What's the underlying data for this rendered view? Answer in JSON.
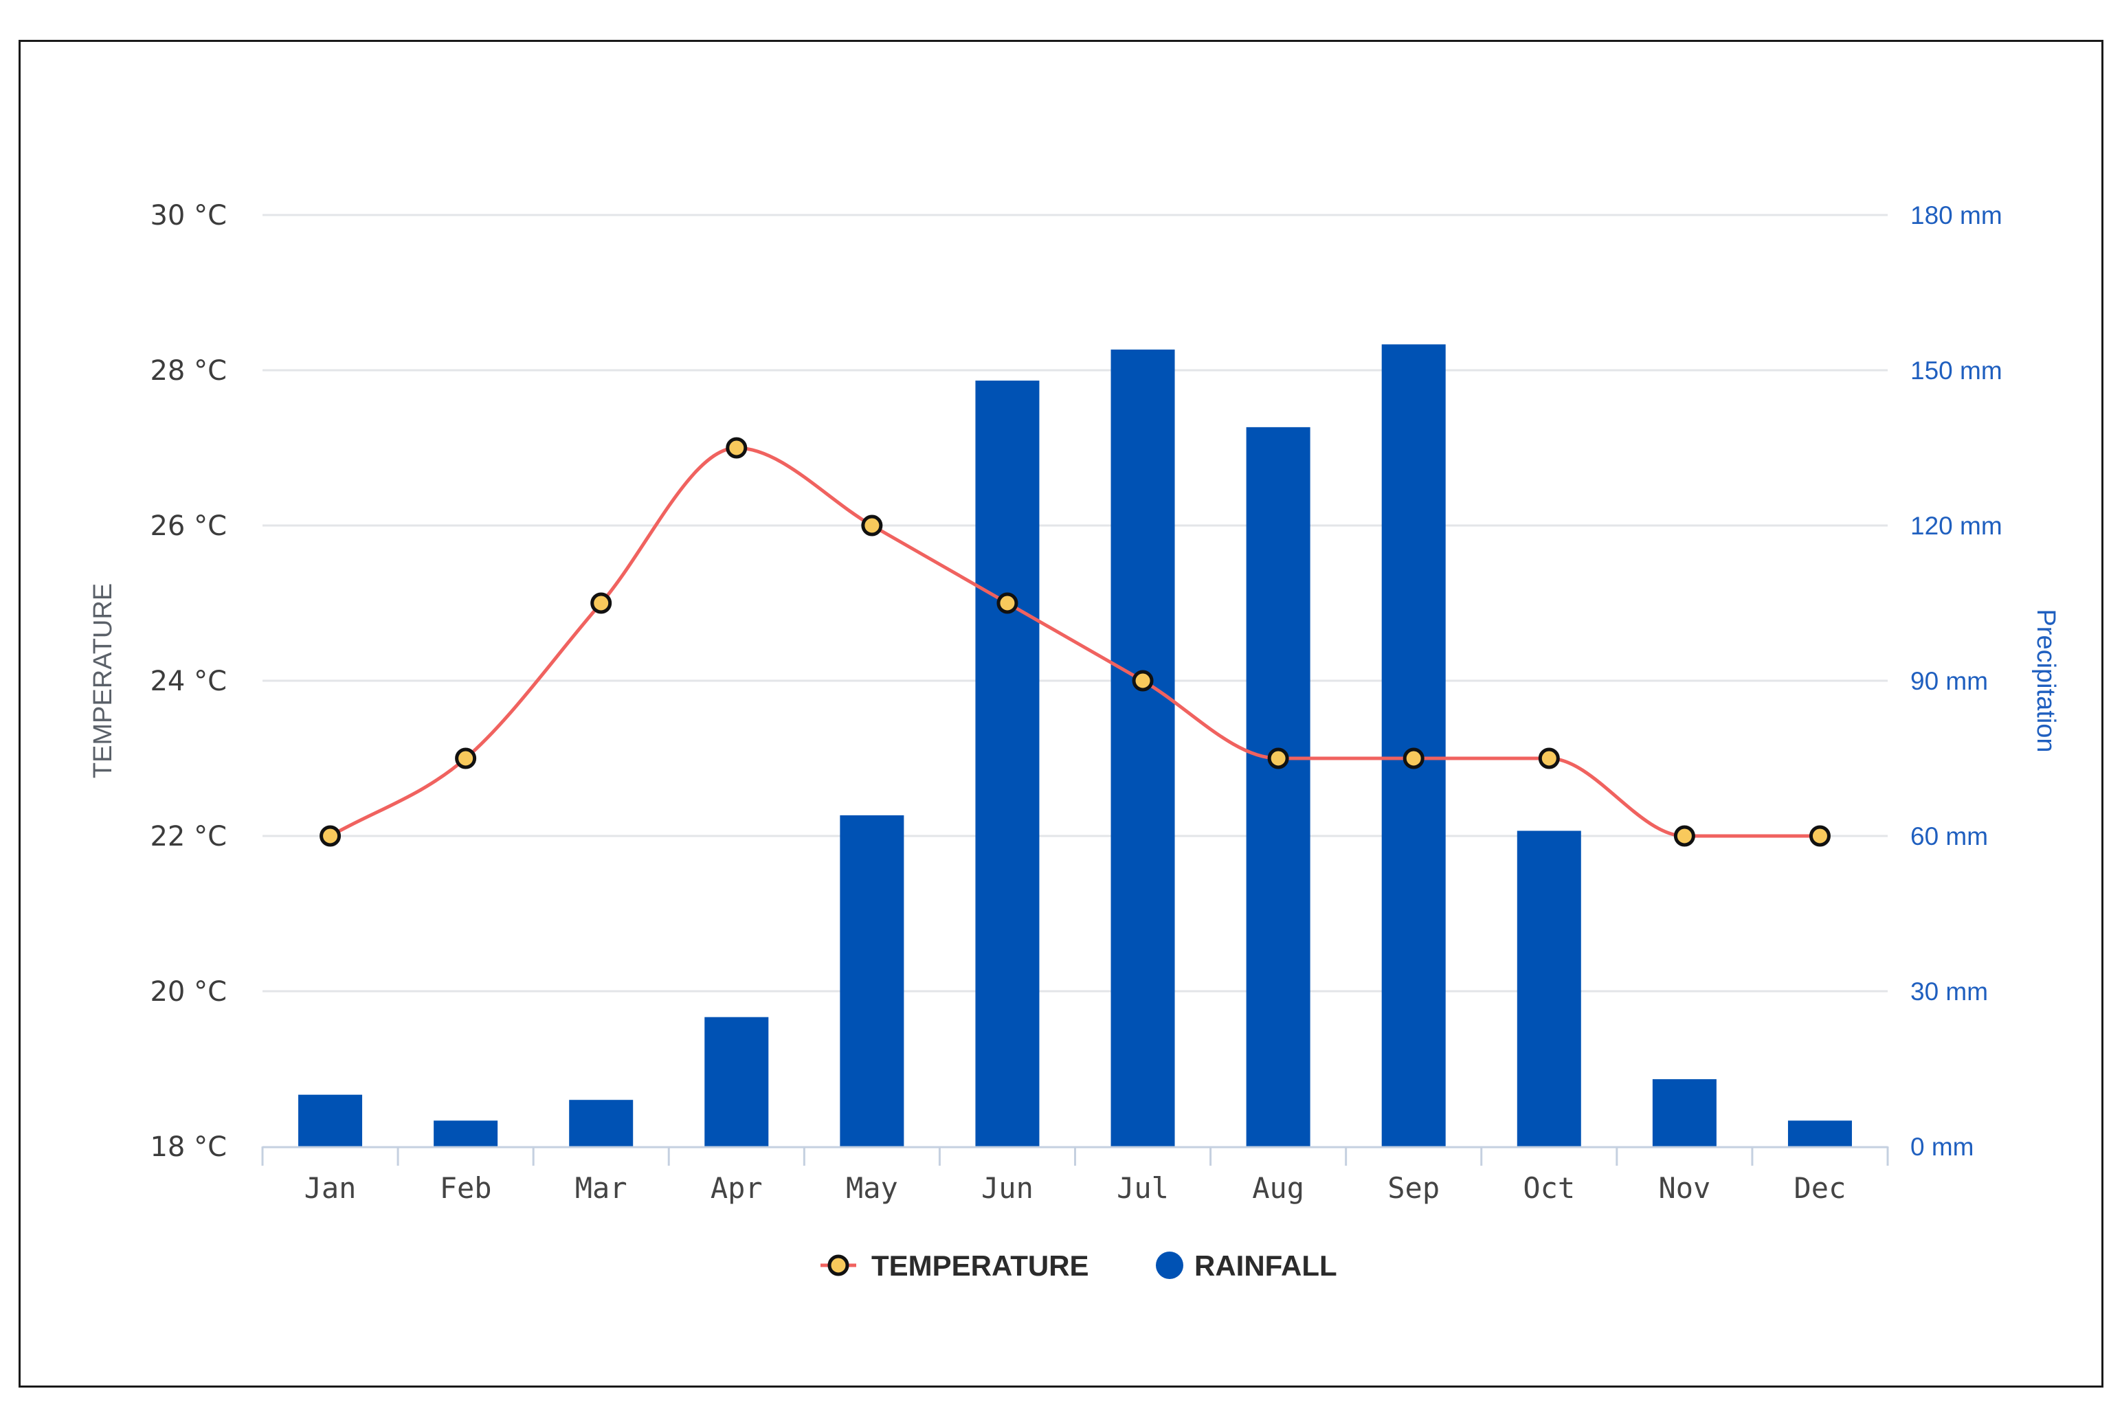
{
  "chart_data": {
    "type": "bar+line",
    "categories": [
      "Jan",
      "Feb",
      "Mar",
      "Apr",
      "May",
      "Jun",
      "Jul",
      "Aug",
      "Sep",
      "Oct",
      "Nov",
      "Dec"
    ],
    "series": [
      {
        "name": "TEMPERATURE",
        "kind": "line",
        "axis": "left",
        "values": [
          22,
          23,
          25,
          27,
          26,
          25,
          24,
          23,
          23,
          23,
          22,
          22
        ],
        "color": "#f0625f",
        "marker_fill": "#f8c95c",
        "marker_stroke": "#111111"
      },
      {
        "name": "RAINFALL",
        "kind": "bar",
        "axis": "right",
        "values": [
          10,
          5,
          9,
          25,
          64,
          148,
          154,
          139,
          155,
          61,
          13,
          5
        ],
        "color": "#0052b4"
      }
    ],
    "y_left": {
      "title": "TEMPERATURE",
      "range": [
        18,
        30
      ],
      "ticks": [
        "18 °C",
        "20 °C",
        "22 °C",
        "24 °C",
        "26 °C",
        "28 °C",
        "30 °C"
      ]
    },
    "y_right": {
      "title": "Precipitation",
      "range": [
        0,
        180
      ],
      "ticks": [
        "0 mm",
        "30 mm",
        "60 mm",
        "90 mm",
        "120 mm",
        "150 mm",
        "180 mm"
      ]
    },
    "grid": true,
    "legend": "bottom-center"
  }
}
